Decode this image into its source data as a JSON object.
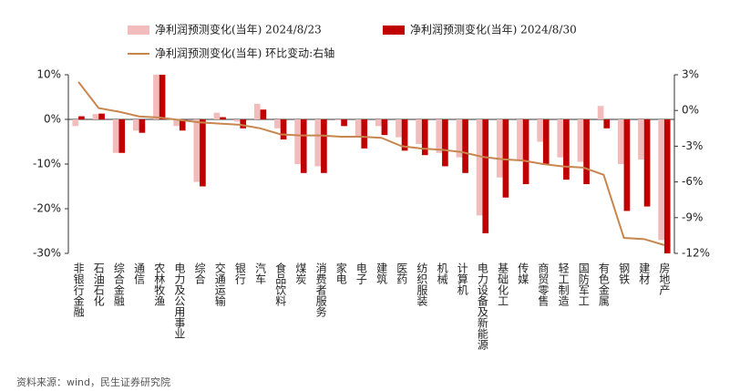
{
  "chart_data": {
    "type": "bar",
    "categories": [
      "非银行金融",
      "石油石化",
      "综合金融",
      "通信",
      "农林牧渔",
      "电力及公用事业",
      "综合",
      "交通运输",
      "银行",
      "汽车",
      "食品饮料",
      "煤炭",
      "消费者服务",
      "家电",
      "电子",
      "建筑",
      "医药",
      "纺织服装",
      "机械",
      "计算机",
      "电力设备及新能源",
      "基础化工",
      "传媒",
      "商贸零售",
      "轻工制造",
      "国防军工",
      "有色金属",
      "钢铁",
      "建材",
      "房地产"
    ],
    "series": [
      {
        "name": "净利润预测变化(当年) 2024/8/23",
        "color": "#f2bcbc",
        "type": "bar",
        "values": [
          -1.5,
          1.2,
          -7.5,
          -2.5,
          10,
          -1.5,
          -14,
          1.5,
          -0.5,
          3.5,
          -2,
          -10,
          -10.5,
          -0.2,
          -4,
          -1.5,
          -4,
          -5.5,
          -7.5,
          -8.5,
          -21.5,
          -13,
          -9,
          -5,
          -8.5,
          -9.5,
          3,
          -10,
          -9,
          -27
        ]
      },
      {
        "name": "净利润预测变化(当年) 2024/8/30",
        "color": "#c00000",
        "type": "bar",
        "values": [
          0.7,
          1.3,
          -7.5,
          -3,
          10,
          -2.5,
          -15,
          0.5,
          -2,
          2.2,
          -4.5,
          -12,
          -12,
          -1.5,
          -6.5,
          -3.5,
          -7,
          -8,
          -10.5,
          -12,
          -25.5,
          -17.5,
          -14.5,
          -10,
          -13.5,
          -14.5,
          -2,
          -20.5,
          -19.5,
          -30
        ]
      },
      {
        "name": "净利润预测变化(当年) 环比变动:右轴",
        "color": "#c8864f",
        "type": "line",
        "axis": "y2",
        "values": [
          2.4,
          0.2,
          -0.1,
          -0.5,
          -0.6,
          -0.8,
          -1.0,
          -1.1,
          -1.2,
          -1.5,
          -2.0,
          -2.1,
          -2.1,
          -2.2,
          -2.2,
          -2.3,
          -3.0,
          -3.2,
          -3.3,
          -3.5,
          -3.9,
          -4.1,
          -4.2,
          -4.5,
          -4.7,
          -4.8,
          -5.4,
          -10.7,
          -10.8,
          -11.3
        ]
      }
    ],
    "ylim": [
      -30,
      10
    ],
    "yticks": [
      {
        "value": 10,
        "label": "10%"
      },
      {
        "value": 0,
        "label": "0%"
      },
      {
        "value": -10,
        "label": "-10%"
      },
      {
        "value": -20,
        "label": "-20%"
      },
      {
        "value": -30,
        "label": "-30%"
      }
    ],
    "y2lim": [
      -12,
      3
    ],
    "y2ticks": [
      {
        "value": 3,
        "label": "3%"
      },
      {
        "value": 0,
        "label": "0%"
      },
      {
        "value": -3,
        "label": "-3%"
      },
      {
        "value": -6,
        "label": "-6%"
      },
      {
        "value": -9,
        "label": "-9%"
      },
      {
        "value": -12,
        "label": "-12%"
      }
    ],
    "source": "资料来源：wind，民生证券研究院"
  }
}
